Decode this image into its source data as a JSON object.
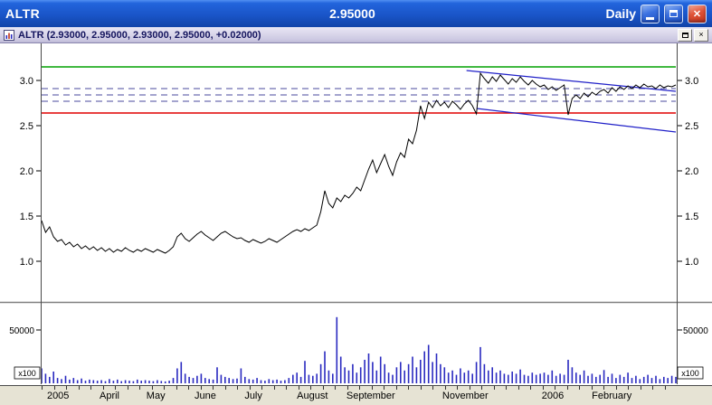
{
  "window": {
    "title_symbol": "ALTR",
    "title_price": "2.95000",
    "title_timeframe": "Daily"
  },
  "icons": {
    "close_glyph": "✕",
    "subwindow_close_glyph": "×"
  },
  "quote_bar": {
    "symbol": "ALTR",
    "ohlc": "(2.93000, 2.95000, 2.93000, 2.95000, +0.02000)"
  },
  "chart_data": {
    "type": "line",
    "symbol": "ALTR",
    "timeframe": "Daily",
    "last_price": 2.95,
    "title": "ALTR Daily price with volume",
    "price_axis": {
      "ticks": [
        3.0,
        2.5,
        2.0,
        1.5,
        1.0
      ],
      "labels": [
        "3.0",
        "2.5",
        "2.0",
        "1.5",
        "1.0"
      ],
      "range_hint": [
        0.6,
        3.35
      ]
    },
    "volume_axis": {
      "ticks": [
        50000
      ],
      "labels": [
        "50000"
      ],
      "multiplier_label": "x100",
      "max": 75000
    },
    "x_axis_labels": [
      {
        "label": "2005",
        "f": 0.026
      },
      {
        "label": "April",
        "f": 0.107
      },
      {
        "label": "May",
        "f": 0.18
      },
      {
        "label": "June",
        "f": 0.258
      },
      {
        "label": "July",
        "f": 0.334
      },
      {
        "label": "August",
        "f": 0.427
      },
      {
        "label": "September",
        "f": 0.519
      },
      {
        "label": "November",
        "f": 0.668
      },
      {
        "label": "2006",
        "f": 0.806
      },
      {
        "label": "February",
        "f": 0.899
      }
    ],
    "overlays": {
      "resistance_line": {
        "price": 3.15,
        "color": "#00A000"
      },
      "support_line": {
        "price": 2.64,
        "color": "#E00000"
      },
      "dashed_levels": {
        "prices": [
          2.91,
          2.84,
          2.77
        ],
        "color": "#4A4A9C"
      },
      "trendlines": [
        {
          "x1": 0.67,
          "price1": 3.11,
          "x2": 1.0,
          "price2": 2.88,
          "color": "#2020C8"
        },
        {
          "x1": 0.686,
          "price1": 2.69,
          "x2": 1.0,
          "price2": 2.43,
          "color": "#2020C8"
        }
      ]
    },
    "colors": {
      "price": "#000000",
      "volume": "#2A2AC0",
      "background": "#FFFFFF"
    },
    "prices": [
      1.45,
      1.32,
      1.38,
      1.27,
      1.22,
      1.24,
      1.18,
      1.21,
      1.16,
      1.19,
      1.14,
      1.17,
      1.13,
      1.16,
      1.12,
      1.15,
      1.11,
      1.14,
      1.1,
      1.13,
      1.11,
      1.15,
      1.12,
      1.1,
      1.13,
      1.11,
      1.14,
      1.12,
      1.1,
      1.13,
      1.11,
      1.09,
      1.12,
      1.16,
      1.27,
      1.31,
      1.25,
      1.22,
      1.26,
      1.3,
      1.33,
      1.29,
      1.26,
      1.23,
      1.27,
      1.31,
      1.33,
      1.3,
      1.27,
      1.25,
      1.26,
      1.23,
      1.21,
      1.24,
      1.22,
      1.2,
      1.22,
      1.25,
      1.23,
      1.21,
      1.24,
      1.27,
      1.3,
      1.33,
      1.35,
      1.33,
      1.36,
      1.34,
      1.37,
      1.4,
      1.55,
      1.78,
      1.64,
      1.59,
      1.7,
      1.66,
      1.73,
      1.7,
      1.75,
      1.82,
      1.78,
      1.9,
      2.02,
      2.12,
      1.98,
      2.08,
      2.18,
      2.05,
      1.95,
      2.1,
      2.2,
      2.15,
      2.35,
      2.3,
      2.45,
      2.72,
      2.58,
      2.76,
      2.7,
      2.78,
      2.72,
      2.76,
      2.7,
      2.77,
      2.73,
      2.68,
      2.74,
      2.78,
      2.72,
      2.63,
      3.08,
      3.02,
      2.97,
      3.04,
      2.99,
      3.06,
      3.01,
      2.96,
      3.02,
      2.98,
      3.04,
      2.99,
      2.95,
      3.0,
      2.96,
      2.93,
      2.95,
      2.9,
      2.93,
      2.89,
      2.92,
      2.95,
      2.62,
      2.8,
      2.84,
      2.8,
      2.86,
      2.82,
      2.87,
      2.84,
      2.88,
      2.9,
      2.86,
      2.92,
      2.88,
      2.93,
      2.9,
      2.94,
      2.91,
      2.95,
      2.92,
      2.96,
      2.93,
      2.94,
      2.91,
      2.95,
      2.92,
      2.94,
      2.93,
      2.95
    ],
    "volumes": [
      14000,
      9000,
      6000,
      11000,
      5000,
      4000,
      7000,
      3500,
      5000,
      3000,
      4500,
      2500,
      3500,
      3000,
      2500,
      3000,
      2000,
      4000,
      2500,
      3500,
      2000,
      3000,
      2500,
      2000,
      3500,
      2500,
      3000,
      2500,
      2000,
      3000,
      2200,
      1800,
      2500,
      5000,
      14000,
      20000,
      9000,
      6000,
      5000,
      7000,
      9000,
      5000,
      4000,
      3500,
      15000,
      8000,
      6000,
      5000,
      4000,
      4500,
      14000,
      6000,
      4000,
      3500,
      5000,
      3000,
      2500,
      4000,
      3000,
      3500,
      2500,
      3000,
      5000,
      8000,
      10000,
      6000,
      21000,
      8000,
      7000,
      9000,
      18000,
      30000,
      12000,
      9000,
      62000,
      25000,
      15000,
      12000,
      18000,
      10000,
      15000,
      22000,
      28000,
      20000,
      12000,
      25000,
      18000,
      10000,
      8000,
      15000,
      20000,
      12000,
      18000,
      25000,
      15000,
      22000,
      30000,
      36000,
      20000,
      28000,
      18000,
      15000,
      10000,
      12000,
      8000,
      14000,
      10000,
      12000,
      9000,
      20000,
      34000,
      18000,
      12000,
      15000,
      10000,
      12000,
      9000,
      8000,
      11000,
      9000,
      13000,
      8000,
      7000,
      10000,
      8000,
      9000,
      10000,
      8000,
      12000,
      7000,
      9000,
      8000,
      22000,
      15000,
      10000,
      8000,
      12000,
      7000,
      9000,
      6000,
      8000,
      12500,
      6000,
      9000,
      5000,
      8000,
      6000,
      10000,
      5000,
      7000,
      4000,
      6000,
      8000,
      5000,
      7000,
      4000,
      6000,
      5000,
      7000,
      6000
    ]
  }
}
